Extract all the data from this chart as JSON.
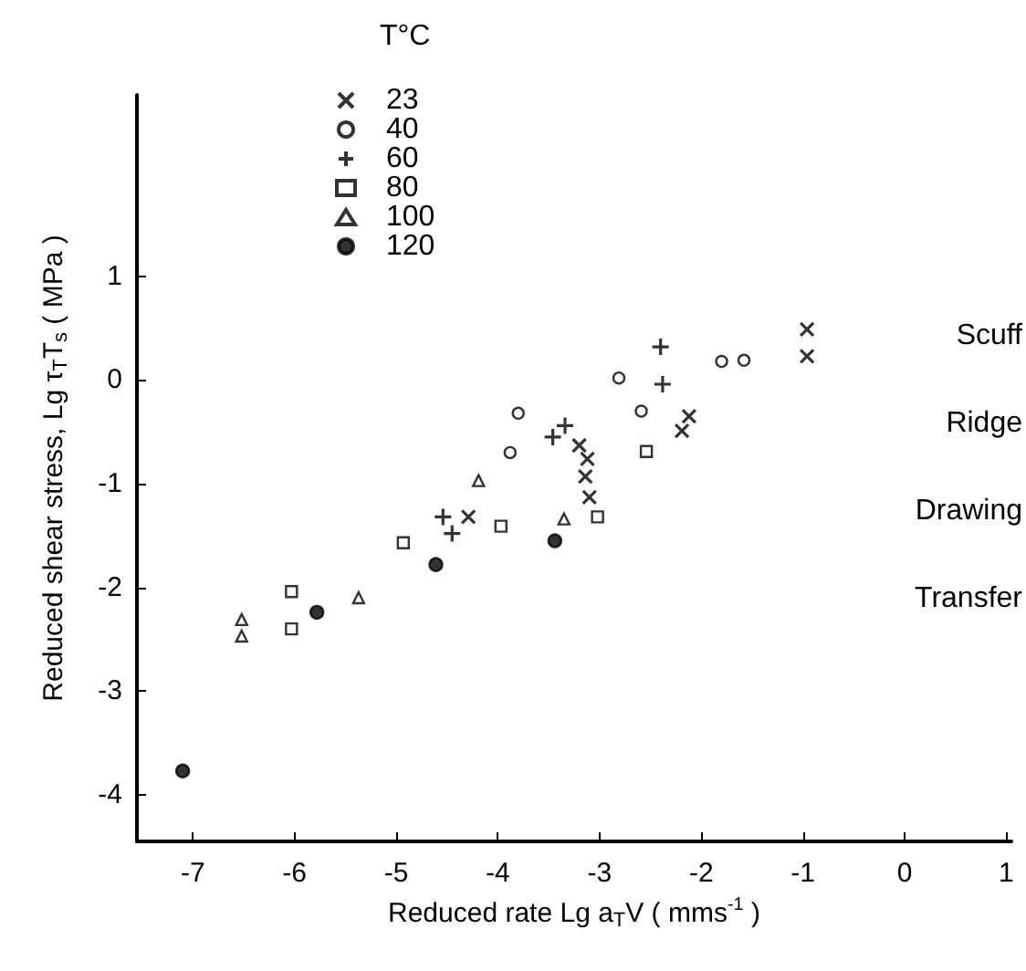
{
  "chart_data": {
    "type": "scatter",
    "xlabel": "Reduced rate Lg a$_{T}$V ( mms$^{-1}$ )",
    "ylabel": "Reduced shear stress, Lg τ$_{T}$T$_{s}$ ( MPa )",
    "legend_title": "T°C",
    "legend": "top left",
    "grid": false,
    "xlim": [
      -7.55,
      1.05
    ],
    "xticks": [
      -7,
      -6,
      -5,
      -4,
      -3,
      -2,
      -1,
      0,
      1
    ],
    "ylim": [
      -4.45,
      2.75
    ],
    "yticks": [
      -4,
      -3,
      -2,
      -1,
      0,
      1
    ],
    "annotations": [
      "Scuff",
      "Ridge",
      "Drawing",
      "Transfer"
    ],
    "series": [
      {
        "name": "23",
        "color": "#000000",
        "marker": "x",
        "x": [
          -0.96,
          -0.96,
          -2.12,
          -2.19,
          -3.2,
          -3.12,
          -3.14,
          -3.1,
          -4.29
        ],
        "values": [
          0.49,
          0.23,
          -0.35,
          -0.49,
          -0.63,
          -0.76,
          -0.93,
          -1.13,
          -1.32
        ]
      },
      {
        "name": "40",
        "color": "#000000",
        "marker": "circle",
        "x": [
          -3.8,
          -3.88,
          -2.81,
          -2.59,
          -1.8,
          -1.58
        ],
        "values": [
          -0.32,
          -0.7,
          0.02,
          -0.3,
          0.18,
          0.19
        ]
      },
      {
        "name": "60",
        "color": "#000000",
        "marker": "cross",
        "x": [
          -2.4,
          -2.38,
          -3.46,
          -3.34,
          -4.54,
          -4.45
        ],
        "values": [
          0.32,
          -0.04,
          -0.55,
          -0.44,
          -1.32,
          -1.48
        ]
      },
      {
        "name": "80",
        "color": "#000000",
        "marker": "square",
        "x": [
          -2.54,
          -3.02,
          -3.97,
          -4.93,
          -6.03,
          -6.03
        ],
        "values": [
          -0.69,
          -1.32,
          -1.41,
          -1.57,
          -2.04,
          -2.4
        ]
      },
      {
        "name": "100",
        "color": "#000000",
        "marker": "triangle",
        "x": [
          -4.19,
          -3.35,
          -5.37,
          -6.52,
          -6.52
        ],
        "values": [
          -0.97,
          -1.34,
          -2.1,
          -2.31,
          -2.47
        ]
      },
      {
        "name": "120",
        "color": "#000000",
        "marker": "dot",
        "x": [
          -7.1,
          -5.78,
          -4.61,
          -3.44
        ],
        "values": [
          -3.77,
          -2.24,
          -1.78,
          -1.55
        ]
      }
    ]
  }
}
